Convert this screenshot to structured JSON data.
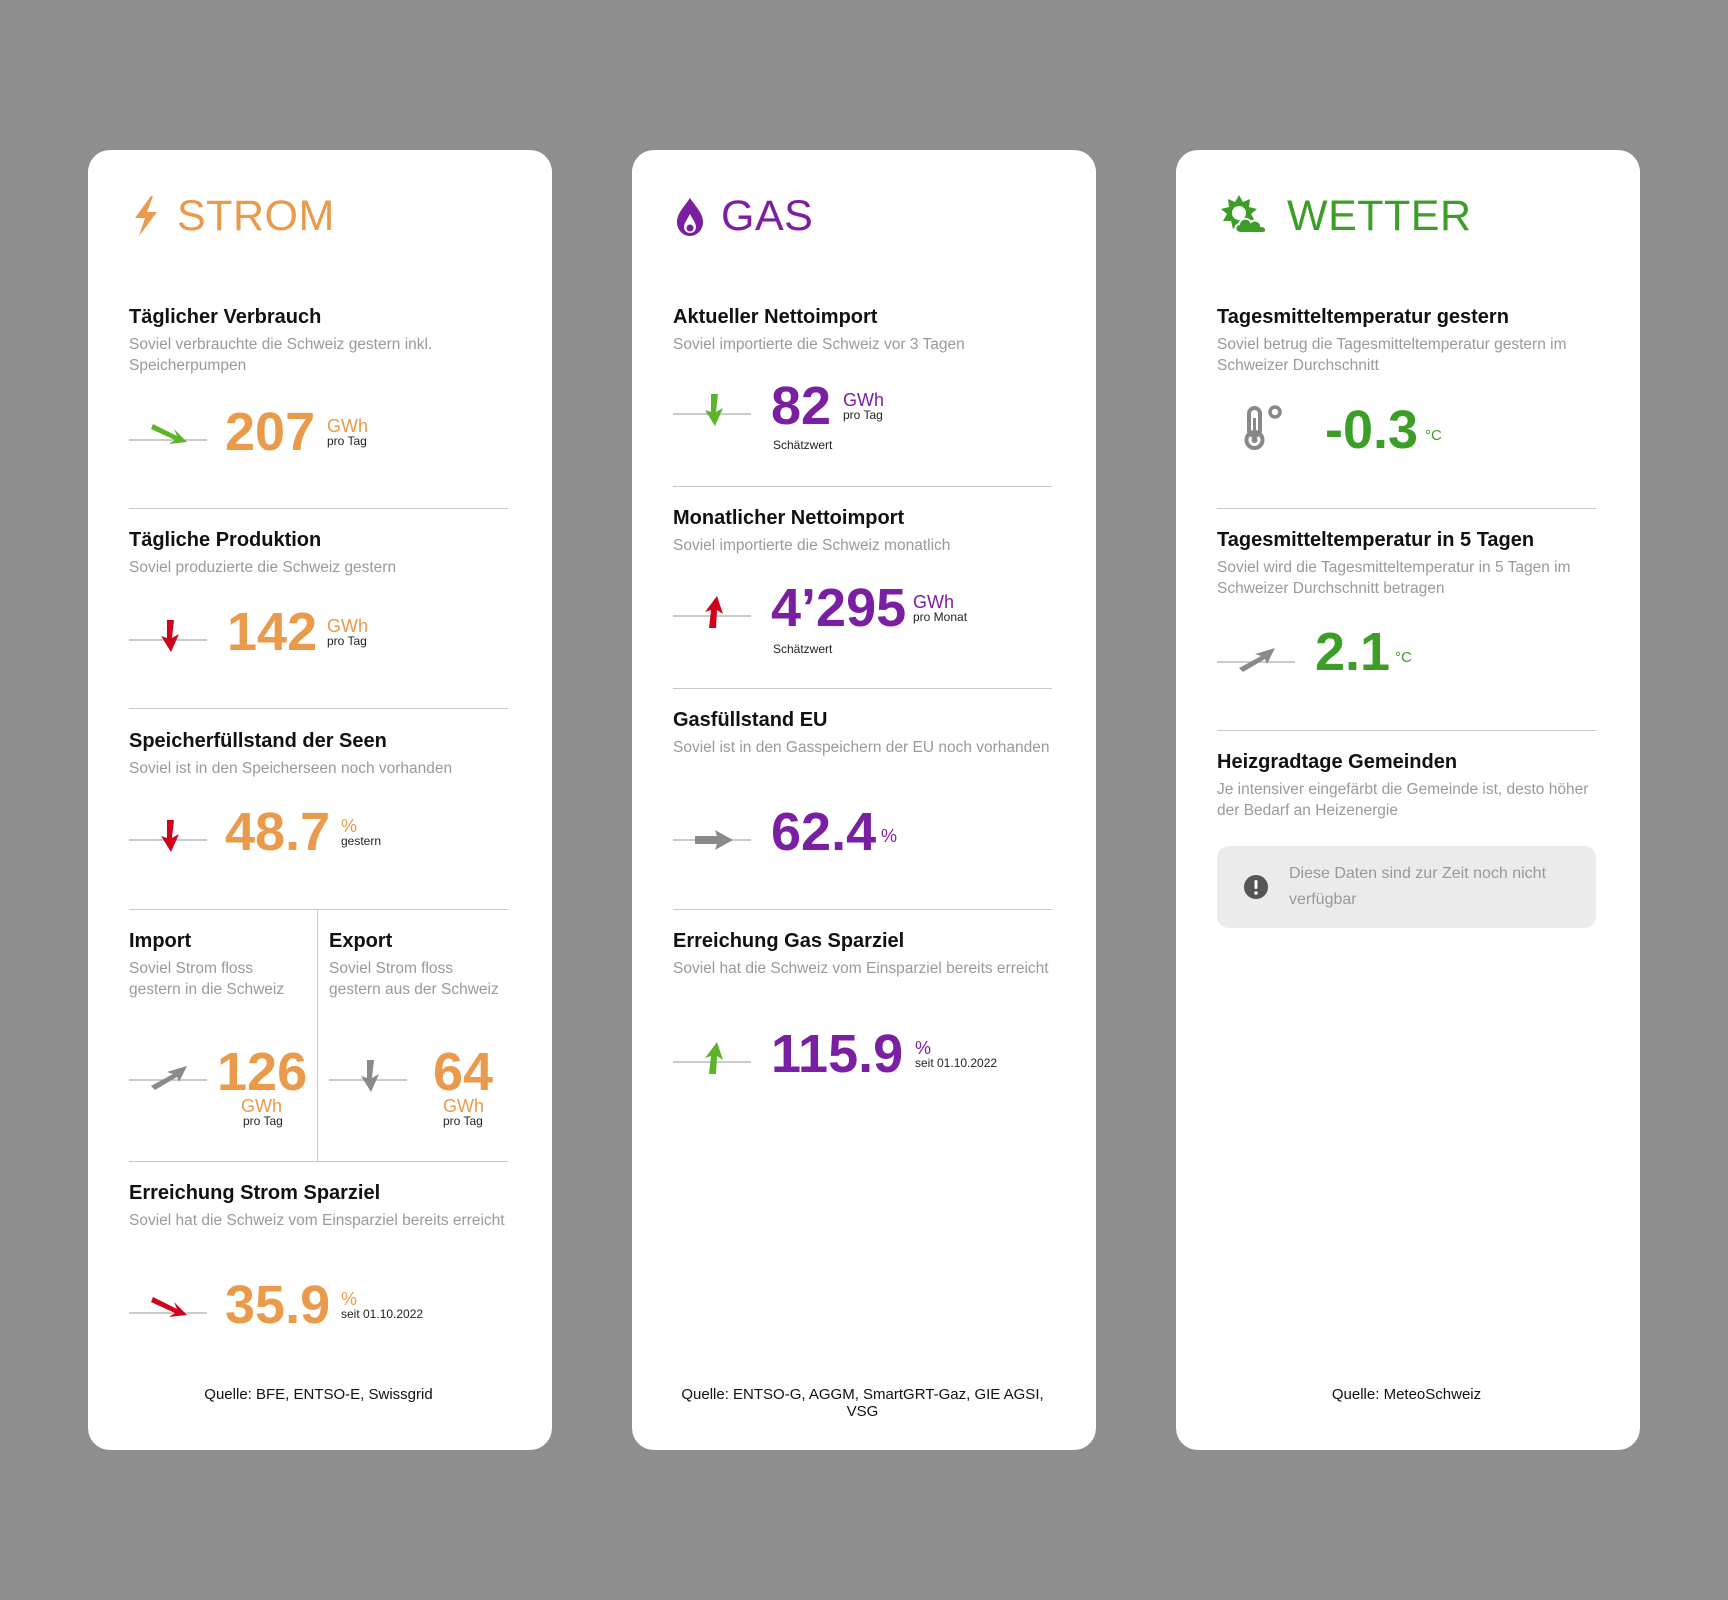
{
  "strom": {
    "title": "STROM",
    "icon": "lightning-icon",
    "color": "#E99A4B",
    "consumption": {
      "title": "Täglicher Verbrauch",
      "desc": "Soviel verbrauchte die Schweiz gestern inkl. Speicherpumpen",
      "value": "207",
      "unit": "GWh",
      "sub": "pro Tag",
      "trend": "down-right",
      "trend_color": "#5DB32A"
    },
    "production": {
      "title": "Tägliche Produktion",
      "desc": "Soviel produzierte die Schweiz gestern",
      "value": "142",
      "unit": "GWh",
      "sub": "pro Tag",
      "trend": "down",
      "trend_color": "#D0021B"
    },
    "storage": {
      "title": "Speicherfüllstand der Seen",
      "desc": "Soviel ist in den Speicherseen noch vorhanden",
      "value": "48.7",
      "unit": "%",
      "sub": "gestern",
      "trend": "down",
      "trend_color": "#D0021B"
    },
    "import": {
      "title": "Import",
      "desc": "Soviel Strom floss gestern in die Schweiz",
      "value": "126",
      "unit": "GWh",
      "sub": "pro Tag",
      "trend": "up-right",
      "trend_color": "#8a8a8a"
    },
    "export": {
      "title": "Export",
      "desc": "Soviel Strom floss gestern aus der Schweiz",
      "value": "64",
      "unit": "GWh",
      "sub": "pro Tag",
      "trend": "down",
      "trend_color": "#8a8a8a"
    },
    "savings": {
      "title": "Erreichung Strom Sparziel",
      "desc": "Soviel hat die Schweiz vom Einsparziel bereits erreicht",
      "value": "35.9",
      "unit": "%",
      "sub": "seit 01.10.2022",
      "trend": "down-right",
      "trend_color": "#D0021B"
    },
    "source": "Quelle: BFE, ENTSO-E, Swissgrid"
  },
  "gas": {
    "title": "GAS",
    "icon": "flame-icon",
    "color": "#7B1FA2",
    "net_import": {
      "title": "Aktueller Nettoimport",
      "desc": "Soviel importierte die Schweiz vor 3 Tagen",
      "value": "82",
      "unit": "GWh",
      "sub": "pro Tag",
      "note": "Schätzwert",
      "trend": "down",
      "trend_color": "#5DB32A"
    },
    "monthly_import": {
      "title": "Monatlicher Nettoimport",
      "desc": "Soviel importierte die Schweiz monatlich",
      "value": "4’295",
      "unit": "GWh",
      "sub": "pro Monat",
      "note": "Schätzwert",
      "trend": "up",
      "trend_color": "#D0021B"
    },
    "eu_storage": {
      "title": "Gasfüllstand EU",
      "desc": "Soviel ist in den Gasspeichern der EU noch vorhanden",
      "value": "62.4",
      "unit": "%",
      "trend": "right",
      "trend_color": "#8a8a8a"
    },
    "savings": {
      "title": "Erreichung Gas Sparziel",
      "desc": "Soviel hat die Schweiz vom Einsparziel bereits erreicht",
      "value": "115.9",
      "unit": "%",
      "sub": "seit 01.10.2022",
      "trend": "up",
      "trend_color": "#5DB32A"
    },
    "source": "Quelle: ENTSO-G, AGGM, SmartGRT-Gaz, GIE AGSI, VSG"
  },
  "wetter": {
    "title": "WETTER",
    "icon": "sun-cloud-icon",
    "color": "#3C9E27",
    "temp_yesterday": {
      "title": "Tagesmitteltemperatur gestern",
      "desc": "Soviel betrug die Tagesmitteltemperatur gestern im Schweizer Durchschnitt",
      "value": "-0.3",
      "unit": "°C",
      "icon": "thermometer-icon"
    },
    "temp_forecast": {
      "title": "Tagesmitteltemperatur in 5 Tagen",
      "desc": "Soviel wird die Tagesmitteltemperatur in 5 Tagen im Schweizer Durchschnitt betragen",
      "value": "2.1",
      "unit": "°C",
      "trend": "up-right",
      "trend_color": "#8a8a8a"
    },
    "heating_days": {
      "title": "Heizgradtage Gemeinden",
      "desc": "Je intensiver eingefärbt die Gemeinde ist, desto höher der Bedarf an Heizenergie",
      "notice": "Diese Daten sind zur Zeit noch nicht verfügbar",
      "notice_icon": "info-icon"
    },
    "source": "Quelle: MeteoSchweiz"
  }
}
